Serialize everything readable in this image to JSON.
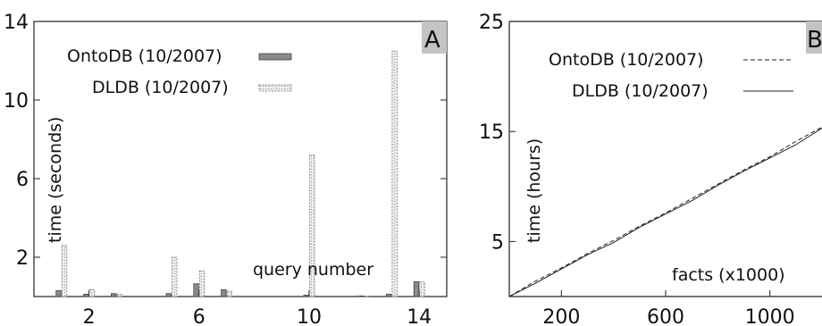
{
  "chart_data": [
    {
      "type": "bar",
      "panel_label": "A",
      "xlabel": "query number",
      "ylabel": "time (seconds)",
      "ylim": [
        0,
        14
      ],
      "xlim": [
        0,
        15
      ],
      "yticks": [
        2,
        6,
        10,
        14
      ],
      "xticks": [
        2,
        6,
        10,
        14
      ],
      "x": [
        1,
        2,
        3,
        4,
        5,
        6,
        7,
        8,
        9,
        10,
        11,
        12,
        13,
        14
      ],
      "series": [
        {
          "name": "OntoDB (10/2007)",
          "color": "#8a8a8a",
          "values": [
            0.3,
            0.12,
            0.15,
            0.0,
            0.15,
            0.65,
            0.35,
            0.0,
            0.0,
            0.07,
            0.0,
            0.03,
            0.12,
            0.75
          ]
        },
        {
          "name": "DLDB (10/2007)",
          "color": "#e4e4e4",
          "values": [
            2.6,
            0.35,
            0.12,
            0.0,
            2.0,
            1.3,
            0.28,
            0.0,
            0.0,
            7.2,
            0.0,
            0.03,
            12.5,
            0.75
          ]
        }
      ],
      "legend_position": "top-right",
      "grid": false
    },
    {
      "type": "line",
      "panel_label": "B",
      "xlabel": "facts (x1000)",
      "ylabel": "time (hours)",
      "xlim": [
        0,
        1200
      ],
      "ylim": [
        0,
        25
      ],
      "xticks": [
        200,
        600,
        1000
      ],
      "yticks": [
        5,
        15,
        25
      ],
      "series": [
        {
          "name": "OntoDB (10/2007)",
          "style": "dashed",
          "color": "#222222",
          "x": [
            0,
            100,
            200,
            300,
            400,
            500,
            600,
            700,
            800,
            900,
            1000,
            1100,
            1200
          ],
          "y": [
            0,
            1.4,
            2.6,
            3.9,
            5.1,
            6.4,
            7.6,
            8.9,
            10.2,
            11.5,
            12.7,
            14.1,
            15.4
          ]
        },
        {
          "name": "DLDB (10/2007)",
          "style": "solid",
          "color": "#222222",
          "x": [
            0,
            100,
            200,
            300,
            400,
            500,
            600,
            700,
            800,
            900,
            1000,
            1100,
            1200
          ],
          "y": [
            0,
            1.2,
            2.5,
            3.8,
            4.9,
            6.3,
            7.5,
            8.7,
            10.1,
            11.4,
            12.6,
            13.8,
            15.3
          ]
        }
      ],
      "legend_position": "top-left",
      "grid": false
    }
  ]
}
